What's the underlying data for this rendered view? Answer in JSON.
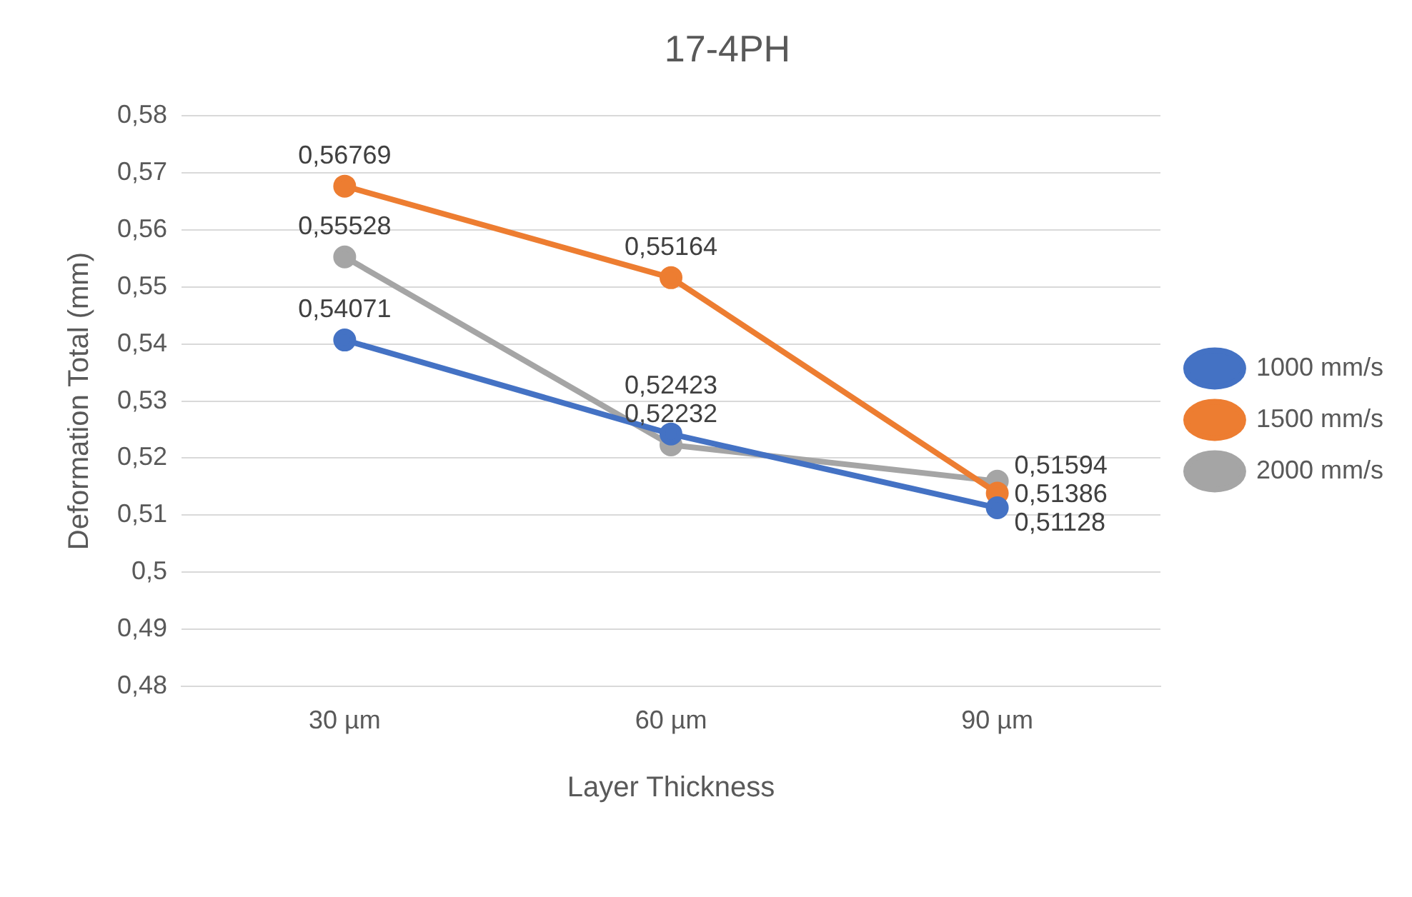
{
  "chart_data": {
    "type": "line",
    "title": "17-4PH",
    "xlabel": "Layer Thickness",
    "ylabel": "Deformation Total (mm)",
    "categories": [
      "30 µm",
      "60 µm",
      "90 µm"
    ],
    "series": [
      {
        "name": "1000 mm/s",
        "color": "#4472c4",
        "values": [
          0.54071,
          0.52423,
          0.51128
        ],
        "value_labels": [
          "0,54071",
          "0,52423",
          "0,51128"
        ]
      },
      {
        "name": "1500 mm/s",
        "color": "#ed7d31",
        "values": [
          0.56769,
          0.55164,
          0.51386
        ],
        "value_labels": [
          "0,56769",
          "0,55164",
          "0,51386"
        ]
      },
      {
        "name": "2000 mm/s",
        "color": "#a5a5a5",
        "values": [
          0.55528,
          0.52232,
          0.51594
        ],
        "value_labels": [
          "0,55528",
          "0,52232",
          "0,51594"
        ]
      }
    ],
    "ylim": [
      0.48,
      0.58
    ],
    "yticks": [
      {
        "value": 0.48,
        "label": "0,48"
      },
      {
        "value": 0.49,
        "label": "0,49"
      },
      {
        "value": 0.5,
        "label": "0,5"
      },
      {
        "value": 0.51,
        "label": "0,51"
      },
      {
        "value": 0.52,
        "label": "0,52"
      },
      {
        "value": 0.53,
        "label": "0,53"
      },
      {
        "value": 0.54,
        "label": "0,54"
      },
      {
        "value": 0.55,
        "label": "0,55"
      },
      {
        "value": 0.56,
        "label": "0,56"
      },
      {
        "value": 0.57,
        "label": "0,57"
      },
      {
        "value": 0.58,
        "label": "0,58"
      }
    ],
    "grid": "y",
    "legend": "right",
    "marker": "circle",
    "line_style": "solid"
  }
}
